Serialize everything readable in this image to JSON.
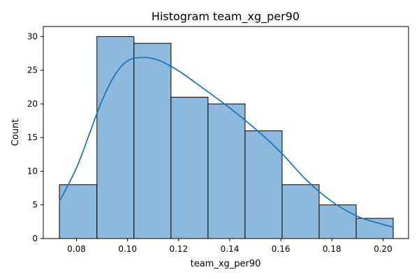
{
  "chart_data": {
    "type": "bar",
    "title": "Histogram team_xg_per90",
    "xlabel": "team_xg_per90",
    "ylabel": "Count",
    "xlim": [
      0.067,
      0.21
    ],
    "ylim": [
      0,
      31.5
    ],
    "bin_edges": [
      0.0733,
      0.088,
      0.1025,
      0.117,
      0.1315,
      0.146,
      0.1605,
      0.175,
      0.1895,
      0.204
    ],
    "values": [
      8,
      30,
      29,
      21,
      20,
      16,
      8,
      5,
      3
    ],
    "kde": {
      "x": [
        0.0733,
        0.08,
        0.085,
        0.09,
        0.095,
        0.1,
        0.106,
        0.112,
        0.12,
        0.13,
        0.14,
        0.15,
        0.16,
        0.17,
        0.18,
        0.19,
        0.2,
        0.204
      ],
      "y": [
        5.5,
        10.5,
        15.5,
        20.5,
        24.3,
        26.4,
        26.9,
        26.5,
        24.9,
        22.2,
        19.4,
        16.3,
        12.8,
        8.7,
        5.5,
        3.3,
        2.1,
        1.7
      ]
    },
    "xticks": [
      0.08,
      0.1,
      0.12,
      0.14,
      0.16,
      0.18,
      0.2
    ],
    "xtick_labels": [
      "0.08",
      "0.10",
      "0.12",
      "0.14",
      "0.16",
      "0.18",
      "0.20"
    ],
    "yticks": [
      0,
      5,
      10,
      15,
      20,
      25,
      30
    ],
    "ytick_labels": [
      "0",
      "5",
      "10",
      "15",
      "20",
      "25",
      "30"
    ],
    "grid": false,
    "bar_color": "#8dbadc",
    "bar_edge_color": "#000000",
    "kde_color": "#1f77b4"
  }
}
